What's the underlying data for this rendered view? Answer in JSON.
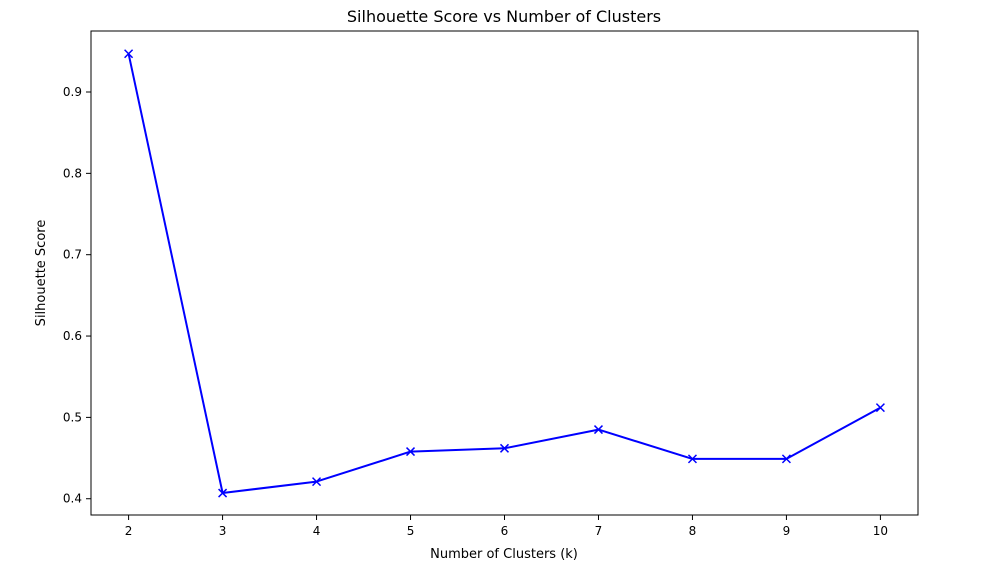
{
  "chart_data": {
    "type": "line",
    "title": "Silhouette Score vs Number of Clusters",
    "xlabel": "Number of Clusters (k)",
    "ylabel": "Silhouette Score",
    "x": [
      2,
      3,
      4,
      5,
      6,
      7,
      8,
      9,
      10
    ],
    "series": [
      {
        "values": [
          0.947,
          0.407,
          0.421,
          0.458,
          0.462,
          0.485,
          0.449,
          0.449,
          0.512
        ],
        "color": "#0000ff",
        "marker": "x"
      }
    ],
    "xticks": [
      "2",
      "3",
      "4",
      "5",
      "6",
      "7",
      "8",
      "9",
      "10"
    ],
    "yticks": [
      "0.4",
      "0.5",
      "0.6",
      "0.7",
      "0.8",
      "0.9"
    ],
    "xlim": [
      1.6,
      10.4
    ],
    "ylim": [
      0.38,
      0.975
    ],
    "grid": false
  }
}
